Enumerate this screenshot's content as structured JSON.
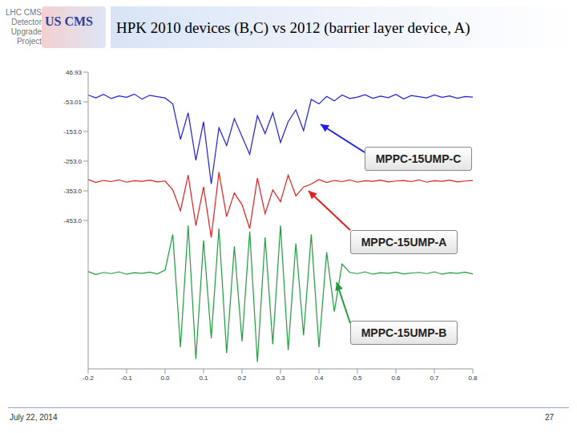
{
  "slide": {
    "title": "HPK 2010 devices (B,C) vs 2012 (barrier layer device, A)",
    "logo_lines": [
      "LHC CMS",
      "Detector",
      "Upgrade",
      "Project"
    ],
    "logo": "US CMS",
    "date": "July 22, 2014",
    "page": "27"
  },
  "chart_data": {
    "type": "line",
    "x": [
      -0.2,
      -0.18,
      -0.16,
      -0.14,
      -0.12,
      -0.1,
      -0.08,
      -0.06,
      -0.04,
      -0.02,
      0.0,
      0.02,
      0.04,
      0.06,
      0.08,
      0.1,
      0.12,
      0.14,
      0.16,
      0.18,
      0.2,
      0.22,
      0.24,
      0.26,
      0.28,
      0.3,
      0.32,
      0.34,
      0.36,
      0.38,
      0.4,
      0.42,
      0.44,
      0.46,
      0.48,
      0.5,
      0.52,
      0.54,
      0.56,
      0.58,
      0.6,
      0.62,
      0.64,
      0.66,
      0.68,
      0.7,
      0.72,
      0.74,
      0.76,
      0.78,
      0.8
    ],
    "xlim": [
      -0.2,
      0.8
    ],
    "xticks": [
      -0.2,
      -0.1,
      {
        "value": 0,
        "label": "0.0"
      },
      0.1,
      0.2,
      0.3,
      0.4,
      0.5,
      0.6,
      0.7,
      0.8
    ],
    "ylim": [
      -953,
      46.93
    ],
    "yticks": [
      46.93,
      -53.01,
      {
        "value": -153,
        "label": "-153.0"
      },
      {
        "value": -253,
        "label": "-253.0"
      },
      {
        "value": -353,
        "label": "-353.0"
      },
      {
        "value": -453,
        "label": "-453.0"
      }
    ],
    "grid": false,
    "series": [
      {
        "name": "MPPC-15UMP-C",
        "color": "#1f1fe6",
        "values": [
          -30,
          -40,
          -28,
          -42,
          -33,
          -38,
          -27,
          -44,
          -31,
          -36,
          -40,
          -60,
          -180,
          -90,
          -250,
          -120,
          -330,
          -140,
          -200,
          -110,
          -170,
          -230,
          -100,
          -160,
          -90,
          -190,
          -120,
          -80,
          -150,
          -45,
          -60,
          -35,
          -50,
          -30,
          -42,
          -37,
          -29,
          -41,
          -34,
          -39,
          -28,
          -43,
          -32,
          -36,
          -40,
          -30,
          -38,
          -33,
          -41,
          -35,
          -37
        ]
      },
      {
        "name": "MPPC-15UMP-A",
        "color": "#e61e1e",
        "values": [
          -315,
          -325,
          -318,
          -322,
          -316,
          -324,
          -319,
          -321,
          -317,
          -323,
          -320,
          -350,
          -420,
          -300,
          -470,
          -340,
          -510,
          -290,
          -440,
          -360,
          -400,
          -480,
          -310,
          -430,
          -350,
          -390,
          -300,
          -370,
          -340,
          -330,
          -315,
          -325,
          -318,
          -322,
          -316,
          -324,
          -319,
          -321,
          -317,
          -323,
          -320,
          -318,
          -322,
          -316,
          -324,
          -319,
          -321,
          -317,
          -323,
          -320,
          -318
        ]
      },
      {
        "name": "MPPC-15UMP-B",
        "color": "#1e9e3c",
        "values": [
          -625,
          -635,
          -628,
          -632,
          -626,
          -634,
          -629,
          -631,
          -627,
          -633,
          -620,
          -500,
          -880,
          -470,
          -920,
          -520,
          -850,
          -480,
          -900,
          -540,
          -860,
          -490,
          -930,
          -510,
          -870,
          -470,
          -890,
          -530,
          -840,
          -500,
          -880,
          -560,
          -760,
          -600,
          -628,
          -632,
          -626,
          -634,
          -629,
          -631,
          -627,
          -633,
          -630,
          -628,
          -632,
          -626,
          -634,
          -629,
          -631,
          -627,
          -633
        ]
      }
    ]
  }
}
